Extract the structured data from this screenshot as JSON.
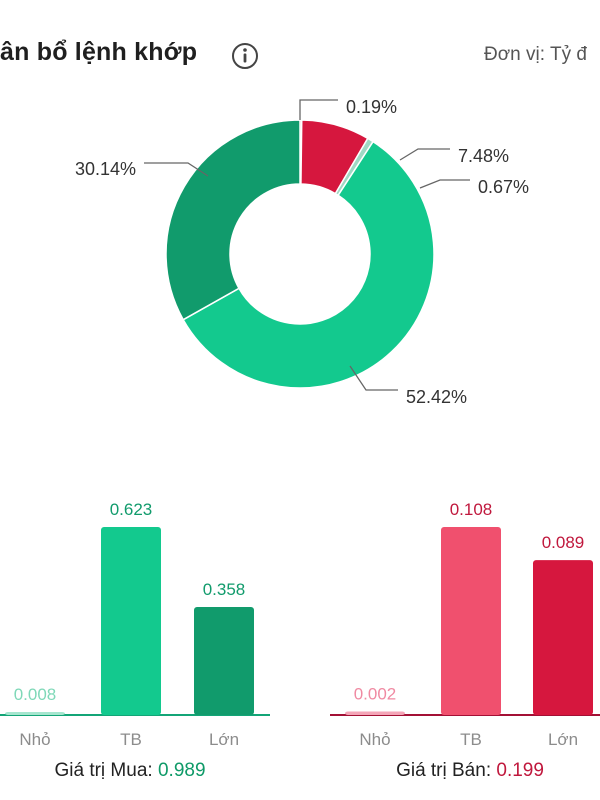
{
  "header": {
    "title": "ân bổ lệnh khớp",
    "unit_label": "Đơn vị: Tỷ đ"
  },
  "donut": {
    "chart_data": {
      "type": "pie",
      "slices": [
        {
          "label": "0.19%",
          "value": 0.19,
          "color": "#f0506e"
        },
        {
          "label": "7.48%",
          "value": 7.48,
          "color": "#d6173e"
        },
        {
          "label": "0.67%",
          "value": 0.67,
          "color": "#9fd9c4"
        },
        {
          "label": "52.42%",
          "value": 52.42,
          "color": "#13c98e"
        },
        {
          "label": "30.14%",
          "value": 30.14,
          "color": "#119b6c"
        }
      ]
    }
  },
  "buy": {
    "chart_data": {
      "type": "bar",
      "categories": [
        "Nhỏ",
        "TB",
        "Lớn"
      ],
      "values": [
        0.008,
        0.623,
        0.358
      ],
      "value_labels": [
        "0.008",
        "0.623",
        "0.358"
      ],
      "colors": [
        "#a6e6cf",
        "#13c98e",
        "#119b6c"
      ],
      "label_color": "#119b6c",
      "label_color_small": "#7fd8b8",
      "axis_color": "#13a577"
    },
    "footer_label": "Giá trị Mua:",
    "footer_value": "0.989",
    "footer_color": "#0f9a68"
  },
  "sell": {
    "chart_data": {
      "type": "bar",
      "categories": [
        "Nhỏ",
        "TB",
        "Lớn"
      ],
      "values": [
        0.002,
        0.108,
        0.089
      ],
      "value_labels": [
        "0.002",
        "0.108",
        "0.089"
      ],
      "colors": [
        "#f4a6b8",
        "#f0506e",
        "#d6173e"
      ],
      "label_color": "#c0183d",
      "label_color_small": "#f08aa2",
      "axis_color": "#a31035"
    },
    "footer_label": "Giá trị Bán:",
    "footer_value": "0.199",
    "footer_color": "#c0183d"
  }
}
